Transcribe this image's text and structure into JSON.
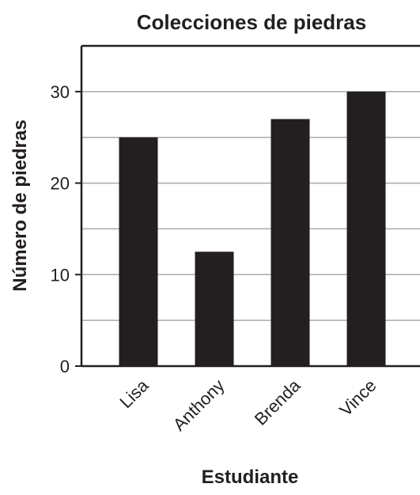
{
  "chart_data": {
    "type": "bar",
    "title": "Colecciones de piedras",
    "xlabel": "Estudiante",
    "ylabel": "Número de piedras",
    "categories": [
      "Lisa",
      "Anthony",
      "Brenda",
      "Vince"
    ],
    "values": [
      25,
      12.5,
      27,
      30
    ],
    "ylim": [
      0,
      35
    ],
    "yticks": [
      0,
      10,
      20,
      30
    ],
    "grid": true,
    "bar_color": "#231f20",
    "grid_color": "#a7a9ac",
    "axis_color": "#231f20"
  }
}
